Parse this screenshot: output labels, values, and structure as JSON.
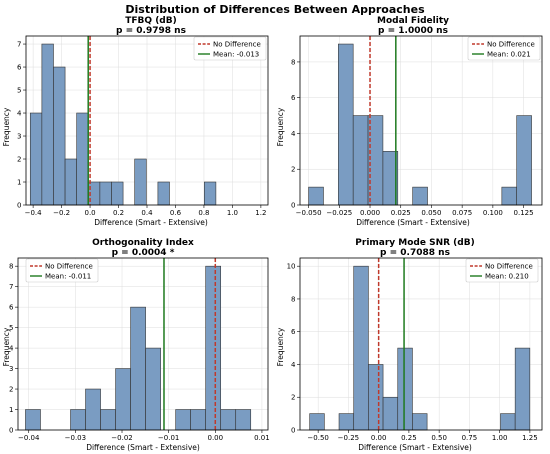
{
  "figure": {
    "suptitle": "Distribution of Differences Between Approaches"
  },
  "colors": {
    "bar_fill": "#7a9cc2",
    "bar_edge": "#333333",
    "no_diff_line": "#c0392b",
    "mean_line": "#1e7a1e"
  },
  "legend": {
    "no_difference": "No Difference",
    "position": "top-right"
  },
  "chart_data": [
    {
      "type": "bar",
      "title": "TFBQ (dB)",
      "subtitle": "p = 0.9798 ns",
      "xlabel": "Difference (Smart - Extensive)",
      "ylabel": "Frequency",
      "xlim": [
        -0.45,
        1.25
      ],
      "ylim": [
        0,
        7.35
      ],
      "xticks": [
        -0.4,
        -0.2,
        0.0,
        0.2,
        0.4,
        0.6,
        0.8,
        1.0,
        1.2
      ],
      "xtick_labels": [
        "−0.4",
        "−0.2",
        "0.0",
        "0.2",
        "0.4",
        "0.6",
        "0.8",
        "1.0",
        "1.2"
      ],
      "yticks": [
        0,
        1,
        2,
        3,
        4,
        5,
        6,
        7
      ],
      "bin_start": -0.42,
      "bin_width": 0.0815,
      "counts": [
        4,
        7,
        6,
        2,
        4,
        1,
        1,
        1,
        0,
        2,
        0,
        1,
        0,
        0,
        0,
        1
      ],
      "no_difference_x": 0.0,
      "mean": -0.013,
      "mean_label": "Mean: -0.013",
      "grid": true
    },
    {
      "type": "bar",
      "title": "Modal Fidelity",
      "subtitle": "p = 1.0000 ns",
      "xlabel": "Difference (Smart - Extensive)",
      "ylabel": "Frequency",
      "xlim": [
        -0.057,
        0.14
      ],
      "ylim": [
        0,
        9.45
      ],
      "xticks": [
        -0.05,
        -0.025,
        0.0,
        0.025,
        0.05,
        0.075,
        0.1,
        0.125
      ],
      "xtick_labels": [
        "−0.050",
        "−0.025",
        "0.000",
        "0.025",
        "0.050",
        "0.075",
        "0.100",
        "0.125"
      ],
      "yticks": [
        0,
        2,
        4,
        6,
        8
      ],
      "bin_start": -0.05,
      "bin_width": 0.0121,
      "counts": [
        1,
        0,
        9,
        5,
        5,
        3,
        0,
        1,
        0,
        0,
        0,
        0,
        0,
        1,
        5
      ],
      "no_difference_x": 0.0,
      "mean": 0.021,
      "mean_label": "Mean: 0.021",
      "grid": true
    },
    {
      "type": "bar",
      "title": "Orthogonality Index",
      "subtitle": "p = 0.0004 *",
      "xlabel": "Difference (Smart - Extensive)",
      "ylabel": "Frequency",
      "xlim": [
        -0.0423,
        0.0113
      ],
      "ylim": [
        0,
        8.4
      ],
      "xticks": [
        -0.04,
        -0.03,
        -0.02,
        -0.01,
        0.0,
        0.01
      ],
      "xtick_labels": [
        "−0.04",
        "−0.03",
        "−0.02",
        "−0.01",
        "0.00",
        "0.01"
      ],
      "yticks": [
        0,
        1,
        2,
        3,
        4,
        5,
        6,
        7,
        8
      ],
      "bin_start": -0.0407,
      "bin_width": 0.00322,
      "counts": [
        1,
        0,
        0,
        1,
        2,
        1,
        3,
        6,
        4,
        0,
        1,
        1,
        8,
        1,
        1
      ],
      "no_difference_x": 0.0,
      "mean": -0.011,
      "mean_label": "Mean: -0.011",
      "grid": true
    },
    {
      "type": "bar",
      "title": "Primary Mode SNR (dB)",
      "subtitle": "p = 0.7088 ns",
      "xlabel": "Difference (Smart - Extensive)",
      "ylabel": "Frequency",
      "xlim": [
        -0.65,
        1.35
      ],
      "ylim": [
        0,
        10.5
      ],
      "xticks": [
        -0.5,
        -0.25,
        0.0,
        0.25,
        0.5,
        0.75,
        1.0,
        1.25
      ],
      "xtick_labels": [
        "−0.50",
        "−0.25",
        "0.00",
        "0.25",
        "0.50",
        "0.75",
        "1.00",
        "1.25"
      ],
      "yticks": [
        0,
        2,
        4,
        6,
        8,
        10
      ],
      "bin_start": -0.57,
      "bin_width": 0.1213,
      "counts": [
        1,
        0,
        1,
        10,
        4,
        2,
        5,
        1,
        0,
        0,
        0,
        0,
        0,
        1,
        5
      ],
      "no_difference_x": 0.0,
      "mean": 0.21,
      "mean_label": "Mean: 0.210",
      "grid": true
    }
  ]
}
